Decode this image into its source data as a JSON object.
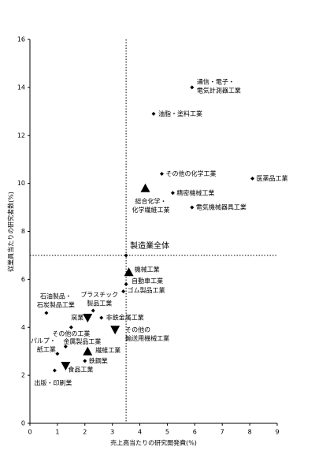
{
  "chart_data": {
    "type": "scatter",
    "xlabel": "売上高当たりの研究開発費(%)",
    "ylabel": "従業員当たりの研究者数(%)",
    "xlim": [
      0,
      9
    ],
    "xticks": [
      0,
      1,
      2,
      3,
      4,
      5,
      6,
      7,
      8,
      9
    ],
    "ylim": [
      0,
      16
    ],
    "yticks": [
      0,
      2,
      4,
      6,
      8,
      10,
      12,
      14,
      16
    ],
    "color": "#000000",
    "points": [
      {
        "label": [
          "通信・電子・",
          "電気計測器工業"
        ],
        "x": 5.9,
        "y": 14.0,
        "marker": "diamond"
      },
      {
        "label": [
          "油脂・塗料工業"
        ],
        "x": 4.5,
        "y": 12.9,
        "marker": "diamond"
      },
      {
        "label": [
          "その他の化学工業"
        ],
        "x": 4.8,
        "y": 10.4,
        "marker": "diamond"
      },
      {
        "label": [
          "医薬品工業"
        ],
        "x": 8.1,
        "y": 10.2,
        "marker": "diamond"
      },
      {
        "label": [
          "精密機械工業"
        ],
        "x": 5.2,
        "y": 9.6,
        "marker": "diamond"
      },
      {
        "label": [
          "電気機械器具工業"
        ],
        "x": 5.9,
        "y": 9.0,
        "marker": "diamond"
      },
      {
        "label": [
          "総合化学・",
          "化学繊維工業"
        ],
        "x": 4.2,
        "y": 9.8,
        "marker": "triangle-up"
      },
      {
        "label": [
          "製造業全体"
        ],
        "x": 3.5,
        "y": 7.0,
        "marker": "diamond"
      },
      {
        "label": [
          "機械工業"
        ],
        "x": 3.6,
        "y": 6.3,
        "marker": "triangle-up"
      },
      {
        "label": [
          "自動車工業"
        ],
        "x": 3.5,
        "y": 5.8,
        "marker": "diamond"
      },
      {
        "label": [
          "ゴム製品工業"
        ],
        "x": 3.4,
        "y": 5.5,
        "marker": "diamond"
      },
      {
        "label": [
          "石油製品・",
          "石炭製品工業"
        ],
        "x": 0.6,
        "y": 4.6,
        "marker": "diamond"
      },
      {
        "label": [
          "プラスチック",
          "製品工業"
        ],
        "x": 2.3,
        "y": 4.7,
        "marker": "diamond"
      },
      {
        "label": [
          "窯業"
        ],
        "x": 2.1,
        "y": 4.4,
        "marker": "triangle-down"
      },
      {
        "label": [
          "非鉄金属工業"
        ],
        "x": 2.6,
        "y": 4.4,
        "marker": "diamond"
      },
      {
        "label": [
          "その他の",
          "輸送用機械工業"
        ],
        "x": 3.1,
        "y": 3.9,
        "marker": "triangle-down"
      },
      {
        "label": [
          "その他の工業"
        ],
        "x": 1.5,
        "y": 4.0,
        "marker": "diamond"
      },
      {
        "label": [
          "金属製品工業"
        ],
        "x": 1.3,
        "y": 3.2,
        "marker": "diamond"
      },
      {
        "label": [
          "繊維工業"
        ],
        "x": 2.1,
        "y": 3.0,
        "marker": "triangle-up"
      },
      {
        "label": [
          "鉄鋼業"
        ],
        "x": 2.0,
        "y": 2.6,
        "marker": "diamond"
      },
      {
        "label": [
          "パルプ・",
          "紙工業"
        ],
        "x": 1.0,
        "y": 2.9,
        "marker": "diamond"
      },
      {
        "label": [
          "食品工業"
        ],
        "x": 1.3,
        "y": 2.4,
        "marker": "triangle-down"
      },
      {
        "label": [
          "出版・印刷業"
        ],
        "x": 0.9,
        "y": 2.2,
        "marker": "diamond"
      }
    ]
  }
}
